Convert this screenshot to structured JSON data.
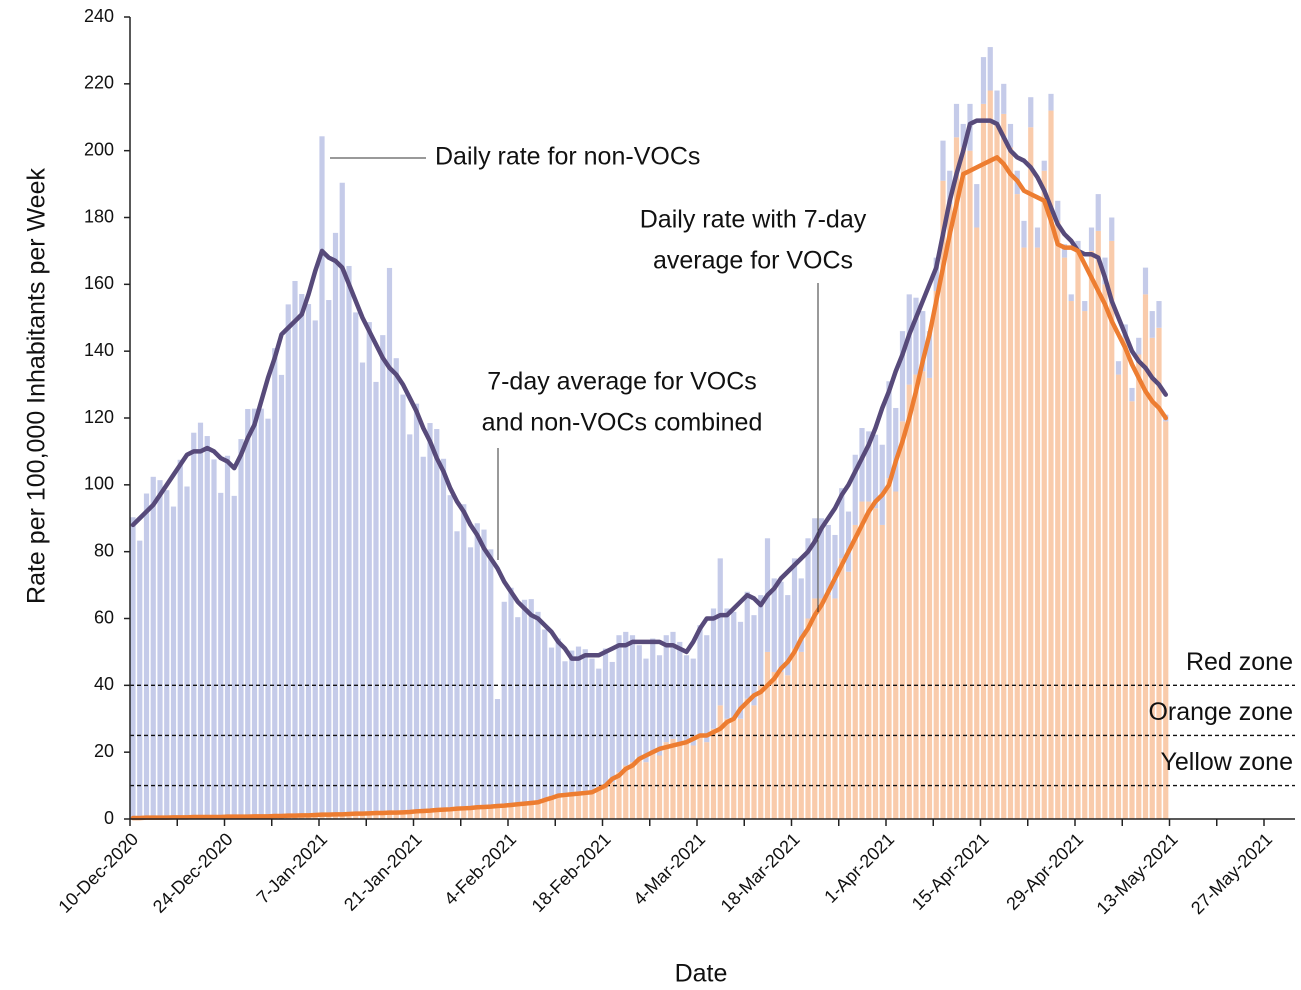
{
  "chart_data": {
    "type": "bar",
    "ylabel": "Rate per 100,000 Inhabitants per Week",
    "xlabel": "Date",
    "ylim": [
      0,
      240
    ],
    "yticks": [
      0,
      20,
      40,
      60,
      80,
      100,
      120,
      140,
      160,
      180,
      200,
      220,
      240
    ],
    "categories": [
      "10-Dec-2020",
      null,
      null,
      null,
      null,
      null,
      null,
      null,
      null,
      null,
      null,
      null,
      null,
      null,
      "24-Dec-2020",
      null,
      null,
      null,
      null,
      null,
      null,
      null,
      null,
      null,
      null,
      null,
      null,
      null,
      "7-Jan-2021",
      null,
      null,
      null,
      null,
      null,
      null,
      null,
      null,
      null,
      null,
      null,
      null,
      null,
      "21-Jan-2021",
      null,
      null,
      null,
      null,
      null,
      null,
      null,
      null,
      null,
      null,
      null,
      null,
      null,
      "4-Feb-2021",
      null,
      null,
      null,
      null,
      null,
      null,
      null,
      null,
      null,
      null,
      null,
      null,
      null,
      "18-Feb-2021",
      null,
      null,
      null,
      null,
      null,
      null,
      null,
      null,
      null,
      null,
      null,
      null,
      null,
      "4-Mar-2021",
      null,
      null,
      null,
      null,
      null,
      null,
      null,
      null,
      null,
      null,
      null,
      null,
      null,
      "18-Mar-2021",
      null,
      null,
      null,
      null,
      null,
      null,
      null,
      null,
      null,
      null,
      null,
      null,
      null,
      "1-Apr-2021",
      null,
      null,
      null,
      null,
      null,
      null,
      null,
      null,
      null,
      null,
      null,
      null,
      null,
      "15-Apr-2021",
      null,
      null,
      null,
      null,
      null,
      null,
      null,
      null,
      null,
      null,
      null,
      null,
      null,
      "29-Apr-2021",
      null,
      null,
      null,
      null,
      null,
      null,
      null,
      null,
      null,
      null,
      null,
      null,
      null,
      "13-May-2021",
      null,
      null,
      null,
      null,
      null,
      null,
      null,
      null,
      null,
      null,
      null,
      null,
      null,
      "27-May-2021",
      null,
      null,
      null
    ],
    "series": [
      {
        "kind": "bar",
        "color": "#f9cbab",
        "values": [
          0.3,
          0.3,
          0.4,
          0.4,
          0.4,
          0.4,
          0.5,
          0.5,
          0.5,
          0.6,
          0.6,
          0.6,
          0.6,
          0.6,
          0.7,
          0.7,
          0.7,
          0.7,
          0.8,
          0.8,
          0.8,
          0.9,
          0.9,
          1,
          1,
          1.1,
          1.1,
          1.2,
          1.3,
          1.3,
          1.4,
          1.4,
          1.5,
          1.6,
          1.6,
          1.7,
          1.8,
          1.8,
          1.9,
          1.9,
          2,
          2.1,
          2.3,
          2.4,
          2.5,
          2.7,
          2.8,
          2.9,
          3.1,
          3.2,
          3.3,
          3.5,
          3.6,
          3.7,
          3.9,
          4,
          4.2,
          4.4,
          4.6,
          4.8,
          5,
          5.7,
          6.3,
          7,
          7.2,
          7.4,
          7.6,
          7.8,
          8,
          9,
          10,
          11,
          14,
          16,
          17,
          18,
          17,
          20,
          19,
          23,
          24,
          23,
          23,
          22,
          25,
          23,
          27,
          34,
          30,
          30,
          30,
          36,
          34,
          40,
          50,
          44,
          44,
          43,
          51,
          50,
          60,
          66,
          66,
          67,
          66,
          78,
          74,
          88,
          95,
          95,
          93,
          88,
          102,
          98,
          119,
          130,
          133,
          134,
          132,
          158,
          191,
          184,
          204,
          201,
          200,
          177,
          214,
          218,
          208,
          211,
          201,
          187,
          171,
          207,
          171,
          194,
          212,
          179,
          168,
          155,
          170,
          152,
          170,
          176,
          160,
          173,
          133,
          144,
          125,
          139,
          157,
          144,
          147,
          119,
          null,
          null,
          null,
          null,
          null,
          null,
          null,
          null,
          null,
          null,
          null,
          null,
          null,
          null,
          null,
          null,
          null,
          null
        ]
      },
      {
        "kind": "bar",
        "color": "#c5cbe9",
        "values": [
          90,
          83,
          97,
          102,
          101,
          98,
          93,
          107,
          99,
          115,
          118,
          114,
          107,
          97,
          108,
          96,
          113,
          122,
          122,
          122,
          119,
          140,
          132,
          153,
          160,
          156,
          153,
          148,
          203,
          154,
          174,
          189,
          164,
          150,
          135,
          147,
          129,
          143,
          163,
          136,
          125,
          113,
          122,
          106,
          116,
          114,
          105,
          94,
          83,
          91,
          78,
          85,
          83,
          77,
          32,
          61,
          65,
          56,
          61,
          61,
          57,
          51,
          45,
          47,
          40,
          43,
          44,
          43,
          40,
          36,
          41,
          36,
          41,
          40,
          38,
          34,
          31,
          34,
          30,
          32,
          32,
          30,
          26,
          26,
          33,
          32,
          36,
          44,
          33,
          32,
          29,
          32,
          27,
          27,
          34,
          28,
          27,
          24,
          27,
          22,
          24,
          24,
          24,
          21,
          19,
          21,
          18,
          21,
          22,
          21,
          22,
          24,
          29,
          25,
          27,
          27,
          23,
          18,
          14,
          10,
          12,
          10,
          10,
          7,
          14,
          13,
          14,
          13,
          10,
          9,
          7,
          7,
          8,
          9,
          6,
          3,
          5,
          6,
          4,
          2,
          3,
          3,
          7,
          11,
          8,
          7,
          4,
          4,
          4,
          5,
          8,
          8,
          8,
          2,
          null,
          null,
          null,
          null,
          null,
          null,
          null,
          null,
          null,
          null,
          null,
          null,
          null,
          null,
          null,
          null,
          null,
          null
        ]
      },
      {
        "kind": "line",
        "color": "#574a7a",
        "values": [
          88,
          90,
          92,
          94,
          97,
          100,
          103,
          106,
          109,
          110,
          110,
          111,
          110,
          108,
          107,
          105,
          109,
          114,
          118,
          125,
          132,
          138,
          145,
          147,
          149,
          151,
          157,
          164,
          170,
          168,
          167,
          165,
          160,
          155,
          150,
          146,
          142,
          138,
          135,
          133,
          130,
          126,
          122,
          117,
          113,
          108,
          104,
          99,
          95,
          92,
          88,
          85,
          81,
          78,
          75,
          71,
          68,
          65,
          63,
          61,
          60,
          58,
          56,
          53,
          51,
          48,
          48,
          49,
          49,
          49,
          50,
          51,
          52,
          52,
          53,
          53,
          53,
          53,
          53,
          52,
          52,
          51,
          50,
          53,
          57,
          60,
          60,
          61,
          61,
          63,
          65,
          67,
          66,
          64,
          67,
          69,
          72,
          74,
          76,
          78,
          80,
          83,
          87,
          90,
          93,
          97,
          100,
          104,
          108,
          112,
          117,
          123,
          128,
          134,
          139,
          145,
          150,
          155,
          160,
          165,
          175,
          185,
          193,
          200,
          208,
          209,
          209,
          209,
          208,
          204,
          200,
          198,
          197,
          195,
          192,
          188,
          183,
          178,
          175,
          173,
          170,
          169,
          169,
          168,
          162,
          155,
          150,
          145,
          140,
          137,
          135,
          132,
          130,
          127,
          null,
          null,
          null,
          null,
          null,
          null,
          null,
          null,
          null,
          null,
          null,
          null,
          null,
          null,
          null,
          null,
          null,
          null
        ]
      },
      {
        "kind": "line",
        "color": "#ed7d31",
        "values": [
          0.3,
          0.3,
          0.4,
          0.4,
          0.4,
          0.4,
          0.5,
          0.5,
          0.5,
          0.6,
          0.6,
          0.6,
          0.6,
          0.6,
          0.7,
          0.7,
          0.7,
          0.7,
          0.8,
          0.8,
          0.8,
          0.9,
          0.9,
          1,
          1,
          1.1,
          1.1,
          1.2,
          1.3,
          1.3,
          1.4,
          1.4,
          1.5,
          1.6,
          1.6,
          1.7,
          1.8,
          1.8,
          1.9,
          1.9,
          2,
          2.1,
          2.3,
          2.4,
          2.5,
          2.7,
          2.8,
          2.9,
          3.1,
          3.2,
          3.3,
          3.5,
          3.6,
          3.7,
          3.9,
          4,
          4.2,
          4.4,
          4.6,
          4.8,
          5,
          5.7,
          6.3,
          7,
          7.2,
          7.4,
          7.6,
          7.8,
          8,
          9,
          10,
          12,
          13,
          15,
          16,
          18,
          19,
          20,
          21,
          21.5,
          22,
          22.5,
          23,
          24,
          25,
          25,
          26,
          27,
          29,
          30,
          33,
          35,
          37,
          38,
          40,
          42,
          45,
          47,
          50,
          54,
          57,
          61,
          64,
          68,
          72,
          76,
          80,
          84,
          88,
          92,
          95,
          97,
          100,
          107,
          113,
          120,
          128,
          137,
          145,
          155,
          165,
          175,
          184,
          193,
          194,
          195,
          196,
          197,
          198,
          196,
          193,
          191,
          188,
          187,
          186,
          185,
          179,
          172,
          171,
          171,
          170,
          166,
          162,
          158,
          154,
          149,
          145,
          141,
          136,
          132,
          128,
          125,
          123,
          120,
          null,
          null,
          null,
          null,
          null,
          null,
          null,
          null,
          null,
          null,
          null,
          null,
          null,
          null,
          null,
          null,
          null,
          null
        ]
      }
    ],
    "thresholds": [
      {
        "value": 40,
        "label": "Red zone"
      },
      {
        "value": 25,
        "label": "Orange zone"
      },
      {
        "value": 10,
        "label": "Yellow zone"
      }
    ],
    "annotations": [
      {
        "text": [
          "Daily rate for non-VOCs"
        ]
      },
      {
        "text": [
          "Daily rate with 7-day",
          "average for VOCs"
        ]
      },
      {
        "text": [
          "7-day average for VOCs",
          "and non-VOCs combined"
        ]
      }
    ]
  }
}
